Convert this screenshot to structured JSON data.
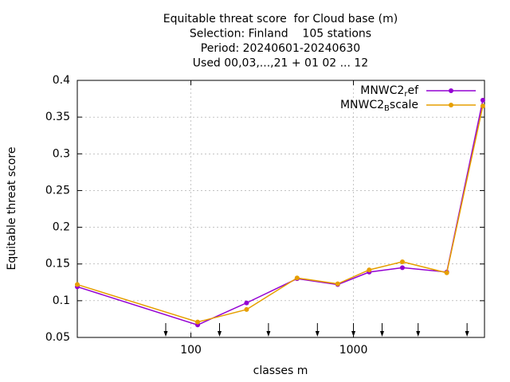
{
  "chart_data": {
    "type": "line",
    "title": [
      "Equitable threat score  for Cloud base (m)",
      "Selection: Finland    105 stations",
      "Period: 20240601-20240630",
      "Used 00,03,...,21 + 01 02 ... 12"
    ],
    "xlabel": "classes m",
    "ylabel": "Equitable threat score",
    "x": [
      20,
      110,
      220,
      450,
      800,
      1250,
      2000,
      3750,
      6250
    ],
    "series": [
      {
        "name": "MNWC2_ref",
        "color": "#9400d3",
        "values": [
          0.119,
          0.067,
          0.097,
          0.13,
          0.122,
          0.139,
          0.145,
          0.139,
          0.373
        ]
      },
      {
        "name": "MNWC2_Bscale",
        "color": "#e69f00",
        "values": [
          0.122,
          0.071,
          0.088,
          0.131,
          0.123,
          0.142,
          0.153,
          0.138,
          0.365
        ]
      }
    ],
    "arrows_x": [
      70,
      150,
      300,
      600,
      1000,
      1500,
      2500,
      5000
    ],
    "xlog": true,
    "xlim": [
      20,
      6400
    ],
    "xticks": [
      100,
      1000
    ],
    "ylim": [
      0.05,
      0.4
    ],
    "yticks": [
      0.05,
      0.1,
      0.15,
      0.2,
      0.25,
      0.3,
      0.35,
      0.4
    ],
    "grid": true,
    "legend": "top-right"
  }
}
